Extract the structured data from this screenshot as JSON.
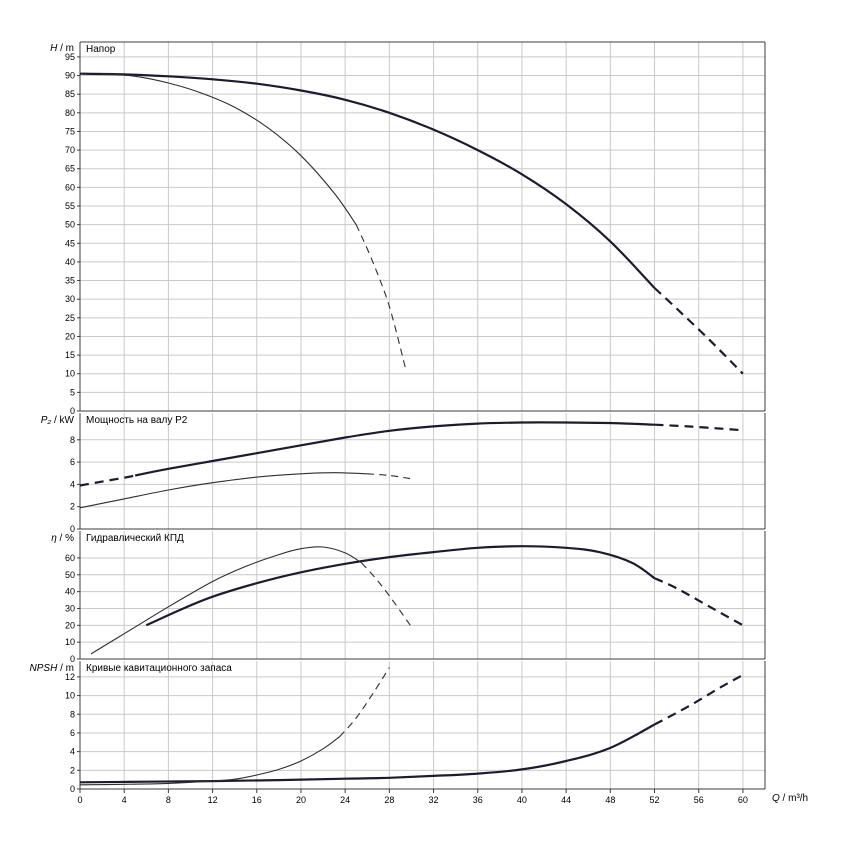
{
  "chart_data": {
    "type": "line",
    "x": {
      "label_var": "Q",
      "label_unit": " / m³/h",
      "lim": [
        0,
        62
      ],
      "ticks": [
        0,
        4,
        8,
        12,
        16,
        20,
        24,
        28,
        32,
        36,
        40,
        44,
        48,
        52,
        56,
        60
      ]
    },
    "colors": {
      "thick": "#1c1c30",
      "thin": "#2e2e2e",
      "grid": "#c9c9c9",
      "axis": "#3c3c3c",
      "text": "#000000"
    },
    "panels": [
      {
        "title": "Напор",
        "ylabel_var": "H",
        "ylabel_unit": " / m",
        "ylim": [
          0,
          99
        ],
        "yticks": [
          0,
          5,
          10,
          15,
          20,
          25,
          30,
          35,
          40,
          45,
          50,
          55,
          60,
          65,
          70,
          75,
          80,
          85,
          90,
          95
        ],
        "series": [
          {
            "name": "head-curve-large",
            "weight": "thick",
            "segments": [
              {
                "style": "solid",
                "points": [
                  [
                    0,
                    90.5
                  ],
                  [
                    4,
                    90.3
                  ],
                  [
                    8,
                    89.8
                  ],
                  [
                    12,
                    89.0
                  ],
                  [
                    16,
                    87.8
                  ],
                  [
                    20,
                    86.0
                  ],
                  [
                    24,
                    83.5
                  ],
                  [
                    28,
                    80.0
                  ],
                  [
                    32,
                    75.5
                  ],
                  [
                    36,
                    70.0
                  ],
                  [
                    40,
                    63.5
                  ],
                  [
                    44,
                    55.5
                  ],
                  [
                    48,
                    45.5
                  ],
                  [
                    52,
                    33.0
                  ]
                ]
              },
              {
                "style": "dashed",
                "points": [
                  [
                    52,
                    33.0
                  ],
                  [
                    54,
                    27.5
                  ],
                  [
                    57,
                    19.0
                  ],
                  [
                    60,
                    10.0
                  ]
                ]
              }
            ]
          },
          {
            "name": "head-curve-small",
            "weight": "thin",
            "segments": [
              {
                "style": "solid",
                "points": [
                  [
                    2,
                    90.5
                  ],
                  [
                    5,
                    89.8
                  ],
                  [
                    8,
                    88.0
                  ],
                  [
                    11,
                    85.3
                  ],
                  [
                    14,
                    81.5
                  ],
                  [
                    17,
                    76.0
                  ],
                  [
                    20,
                    68.5
                  ],
                  [
                    23,
                    58.5
                  ],
                  [
                    25,
                    50.0
                  ]
                ]
              },
              {
                "style": "dashed",
                "points": [
                  [
                    25,
                    50.0
                  ],
                  [
                    26.5,
                    40.0
                  ],
                  [
                    28,
                    28.0
                  ],
                  [
                    29.5,
                    11.0
                  ]
                ]
              }
            ]
          }
        ]
      },
      {
        "title": "Мощность на валу P2",
        "ylabel_var": "P₂",
        "ylabel_unit": " / kW",
        "ylim": [
          0,
          10.4
        ],
        "yticks": [
          0,
          2,
          4,
          6,
          8
        ],
        "series": [
          {
            "name": "power-curve-large",
            "weight": "thick",
            "segments": [
              {
                "style": "dashed",
                "points": [
                  [
                    0,
                    3.9
                  ],
                  [
                    2,
                    4.25
                  ],
                  [
                    4,
                    4.6
                  ],
                  [
                    5,
                    4.8
                  ]
                ]
              },
              {
                "style": "solid",
                "points": [
                  [
                    5,
                    4.8
                  ],
                  [
                    8,
                    5.4
                  ],
                  [
                    12,
                    6.1
                  ],
                  [
                    16,
                    6.8
                  ],
                  [
                    20,
                    7.5
                  ],
                  [
                    24,
                    8.2
                  ],
                  [
                    28,
                    8.8
                  ],
                  [
                    32,
                    9.2
                  ],
                  [
                    36,
                    9.45
                  ],
                  [
                    40,
                    9.55
                  ],
                  [
                    44,
                    9.55
                  ],
                  [
                    48,
                    9.5
                  ],
                  [
                    52,
                    9.35
                  ]
                ]
              },
              {
                "style": "dashed",
                "points": [
                  [
                    52,
                    9.35
                  ],
                  [
                    55,
                    9.2
                  ],
                  [
                    58,
                    9.0
                  ],
                  [
                    60,
                    8.85
                  ]
                ]
              }
            ]
          },
          {
            "name": "power-curve-small",
            "weight": "thin",
            "segments": [
              {
                "style": "solid",
                "points": [
                  [
                    0,
                    1.9
                  ],
                  [
                    4,
                    2.7
                  ],
                  [
                    8,
                    3.5
                  ],
                  [
                    12,
                    4.15
                  ],
                  [
                    16,
                    4.65
                  ],
                  [
                    20,
                    4.95
                  ],
                  [
                    23,
                    5.05
                  ],
                  [
                    26,
                    4.95
                  ]
                ]
              },
              {
                "style": "dashed",
                "points": [
                  [
                    26,
                    4.95
                  ],
                  [
                    28,
                    4.8
                  ],
                  [
                    30,
                    4.5
                  ]
                ]
              }
            ]
          }
        ]
      },
      {
        "title": "Гидравлический КПД",
        "ylabel_var": "η",
        "ylabel_unit": " / %",
        "ylim": [
          0,
          76
        ],
        "yticks": [
          0,
          10,
          20,
          30,
          40,
          50,
          60
        ],
        "series": [
          {
            "name": "efficiency-curve-large",
            "weight": "thick",
            "segments": [
              {
                "style": "solid",
                "points": [
                  [
                    6,
                    20
                  ],
                  [
                    9,
                    29
                  ],
                  [
                    12,
                    37
                  ],
                  [
                    16,
                    45
                  ],
                  [
                    20,
                    51.5
                  ],
                  [
                    24,
                    56.5
                  ],
                  [
                    28,
                    60.5
                  ],
                  [
                    32,
                    63.5
                  ],
                  [
                    36,
                    66
                  ],
                  [
                    40,
                    67
                  ],
                  [
                    44,
                    66
                  ],
                  [
                    47,
                    63.5
                  ],
                  [
                    50,
                    57
                  ],
                  [
                    52,
                    48
                  ]
                ]
              },
              {
                "style": "dashed",
                "points": [
                  [
                    52,
                    48
                  ],
                  [
                    54,
                    42
                  ],
                  [
                    57,
                    31
                  ],
                  [
                    60,
                    20
                  ]
                ]
              }
            ]
          },
          {
            "name": "efficiency-curve-small",
            "weight": "thin",
            "segments": [
              {
                "style": "solid",
                "points": [
                  [
                    1,
                    3
                  ],
                  [
                    4,
                    15
                  ],
                  [
                    8,
                    31
                  ],
                  [
                    12,
                    46
                  ],
                  [
                    15,
                    55
                  ],
                  [
                    18,
                    62
                  ],
                  [
                    20,
                    65.5
                  ],
                  [
                    22,
                    66.5
                  ],
                  [
                    24,
                    63
                  ],
                  [
                    25.5,
                    57
                  ]
                ]
              },
              {
                "style": "dashed",
                "points": [
                  [
                    25.5,
                    57
                  ],
                  [
                    27,
                    46
                  ],
                  [
                    28.5,
                    33
                  ],
                  [
                    30,
                    19
                  ]
                ]
              }
            ]
          }
        ]
      },
      {
        "title": "Кривые кавитационного запаса",
        "ylabel_var": "NPSH",
        "ylabel_unit": " / m",
        "ylim": [
          0,
          13.7
        ],
        "yticks": [
          0,
          2,
          4,
          6,
          8,
          10,
          12
        ],
        "series": [
          {
            "name": "npsh-curve-large",
            "weight": "thick",
            "segments": [
              {
                "style": "solid",
                "points": [
                  [
                    0,
                    0.72
                  ],
                  [
                    6,
                    0.78
                  ],
                  [
                    12,
                    0.85
                  ],
                  [
                    18,
                    0.95
                  ],
                  [
                    24,
                    1.1
                  ],
                  [
                    28,
                    1.2
                  ],
                  [
                    32,
                    1.4
                  ],
                  [
                    36,
                    1.65
                  ],
                  [
                    40,
                    2.1
                  ],
                  [
                    44,
                    3.0
                  ],
                  [
                    48,
                    4.4
                  ],
                  [
                    52,
                    6.9
                  ]
                ]
              },
              {
                "style": "dashed",
                "points": [
                  [
                    52,
                    6.9
                  ],
                  [
                    55,
                    8.8
                  ],
                  [
                    58,
                    10.9
                  ],
                  [
                    60,
                    12.2
                  ]
                ]
              }
            ]
          },
          {
            "name": "npsh-curve-small",
            "weight": "thin",
            "segments": [
              {
                "style": "solid",
                "points": [
                  [
                    0,
                    0.45
                  ],
                  [
                    4,
                    0.5
                  ],
                  [
                    8,
                    0.6
                  ],
                  [
                    12,
                    0.85
                  ],
                  [
                    14,
                    1.05
                  ],
                  [
                    16,
                    1.5
                  ],
                  [
                    18,
                    2.1
                  ],
                  [
                    20,
                    3.0
                  ],
                  [
                    22,
                    4.3
                  ],
                  [
                    23.5,
                    5.6
                  ]
                ]
              },
              {
                "style": "dashed",
                "points": [
                  [
                    23.5,
                    5.6
                  ],
                  [
                    25,
                    7.6
                  ],
                  [
                    26.5,
                    10.2
                  ],
                  [
                    28,
                    13.0
                  ]
                ]
              }
            ]
          }
        ]
      }
    ]
  }
}
